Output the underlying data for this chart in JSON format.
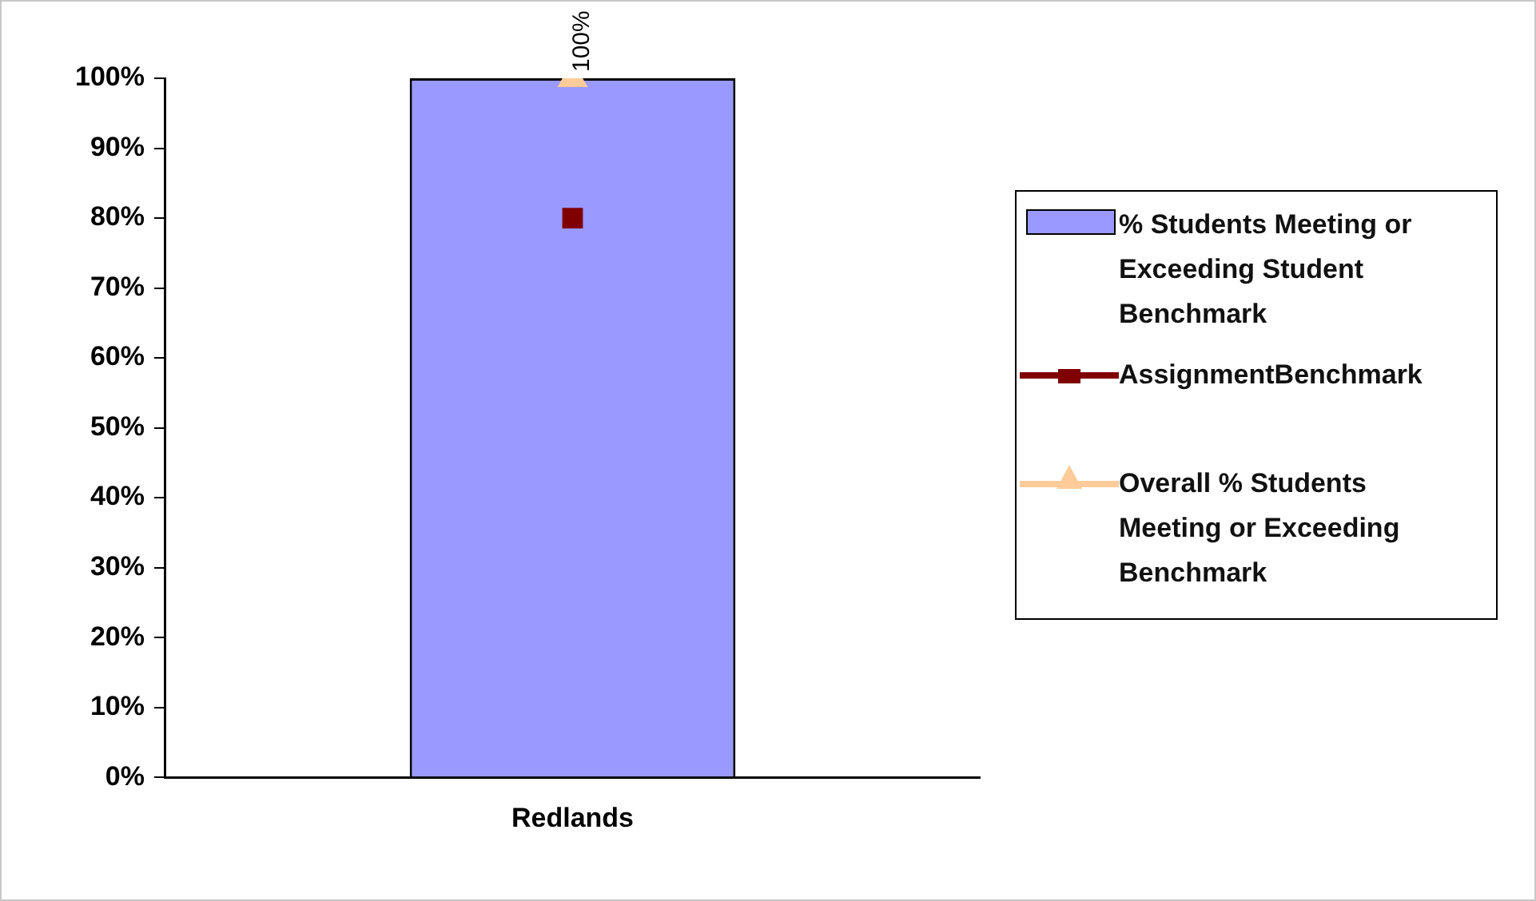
{
  "chart_data": {
    "type": "bar",
    "categories": [
      "Redlands"
    ],
    "series": [
      {
        "name": "% Students Meeting or Exceeding Student Benchmark",
        "color": "#9999ff",
        "values": [
          100
        ],
        "value_labels": [
          "100%"
        ]
      },
      {
        "name": "AssignmentBenchmark",
        "type": "line",
        "color": "#800000",
        "values": [
          80
        ],
        "marker": "square"
      },
      {
        "name": "Overall % Students Meeting or Exceeding Benchmark",
        "type": "line",
        "color": "#ffcc99",
        "values": [
          100
        ],
        "marker": "triangle"
      }
    ],
    "ylim": [
      0,
      100
    ],
    "yticks": [
      {
        "value": 0,
        "label": "0%"
      },
      {
        "value": 10,
        "label": "10%"
      },
      {
        "value": 20,
        "label": "20%"
      },
      {
        "value": 30,
        "label": "30%"
      },
      {
        "value": 40,
        "label": "40%"
      },
      {
        "value": 50,
        "label": "50%"
      },
      {
        "value": 60,
        "label": "60%"
      },
      {
        "value": 70,
        "label": "70%"
      },
      {
        "value": 80,
        "label": "80%"
      },
      {
        "value": 90,
        "label": "90%"
      },
      {
        "value": 100,
        "label": "100%"
      }
    ],
    "grid": false,
    "legend": "right"
  }
}
